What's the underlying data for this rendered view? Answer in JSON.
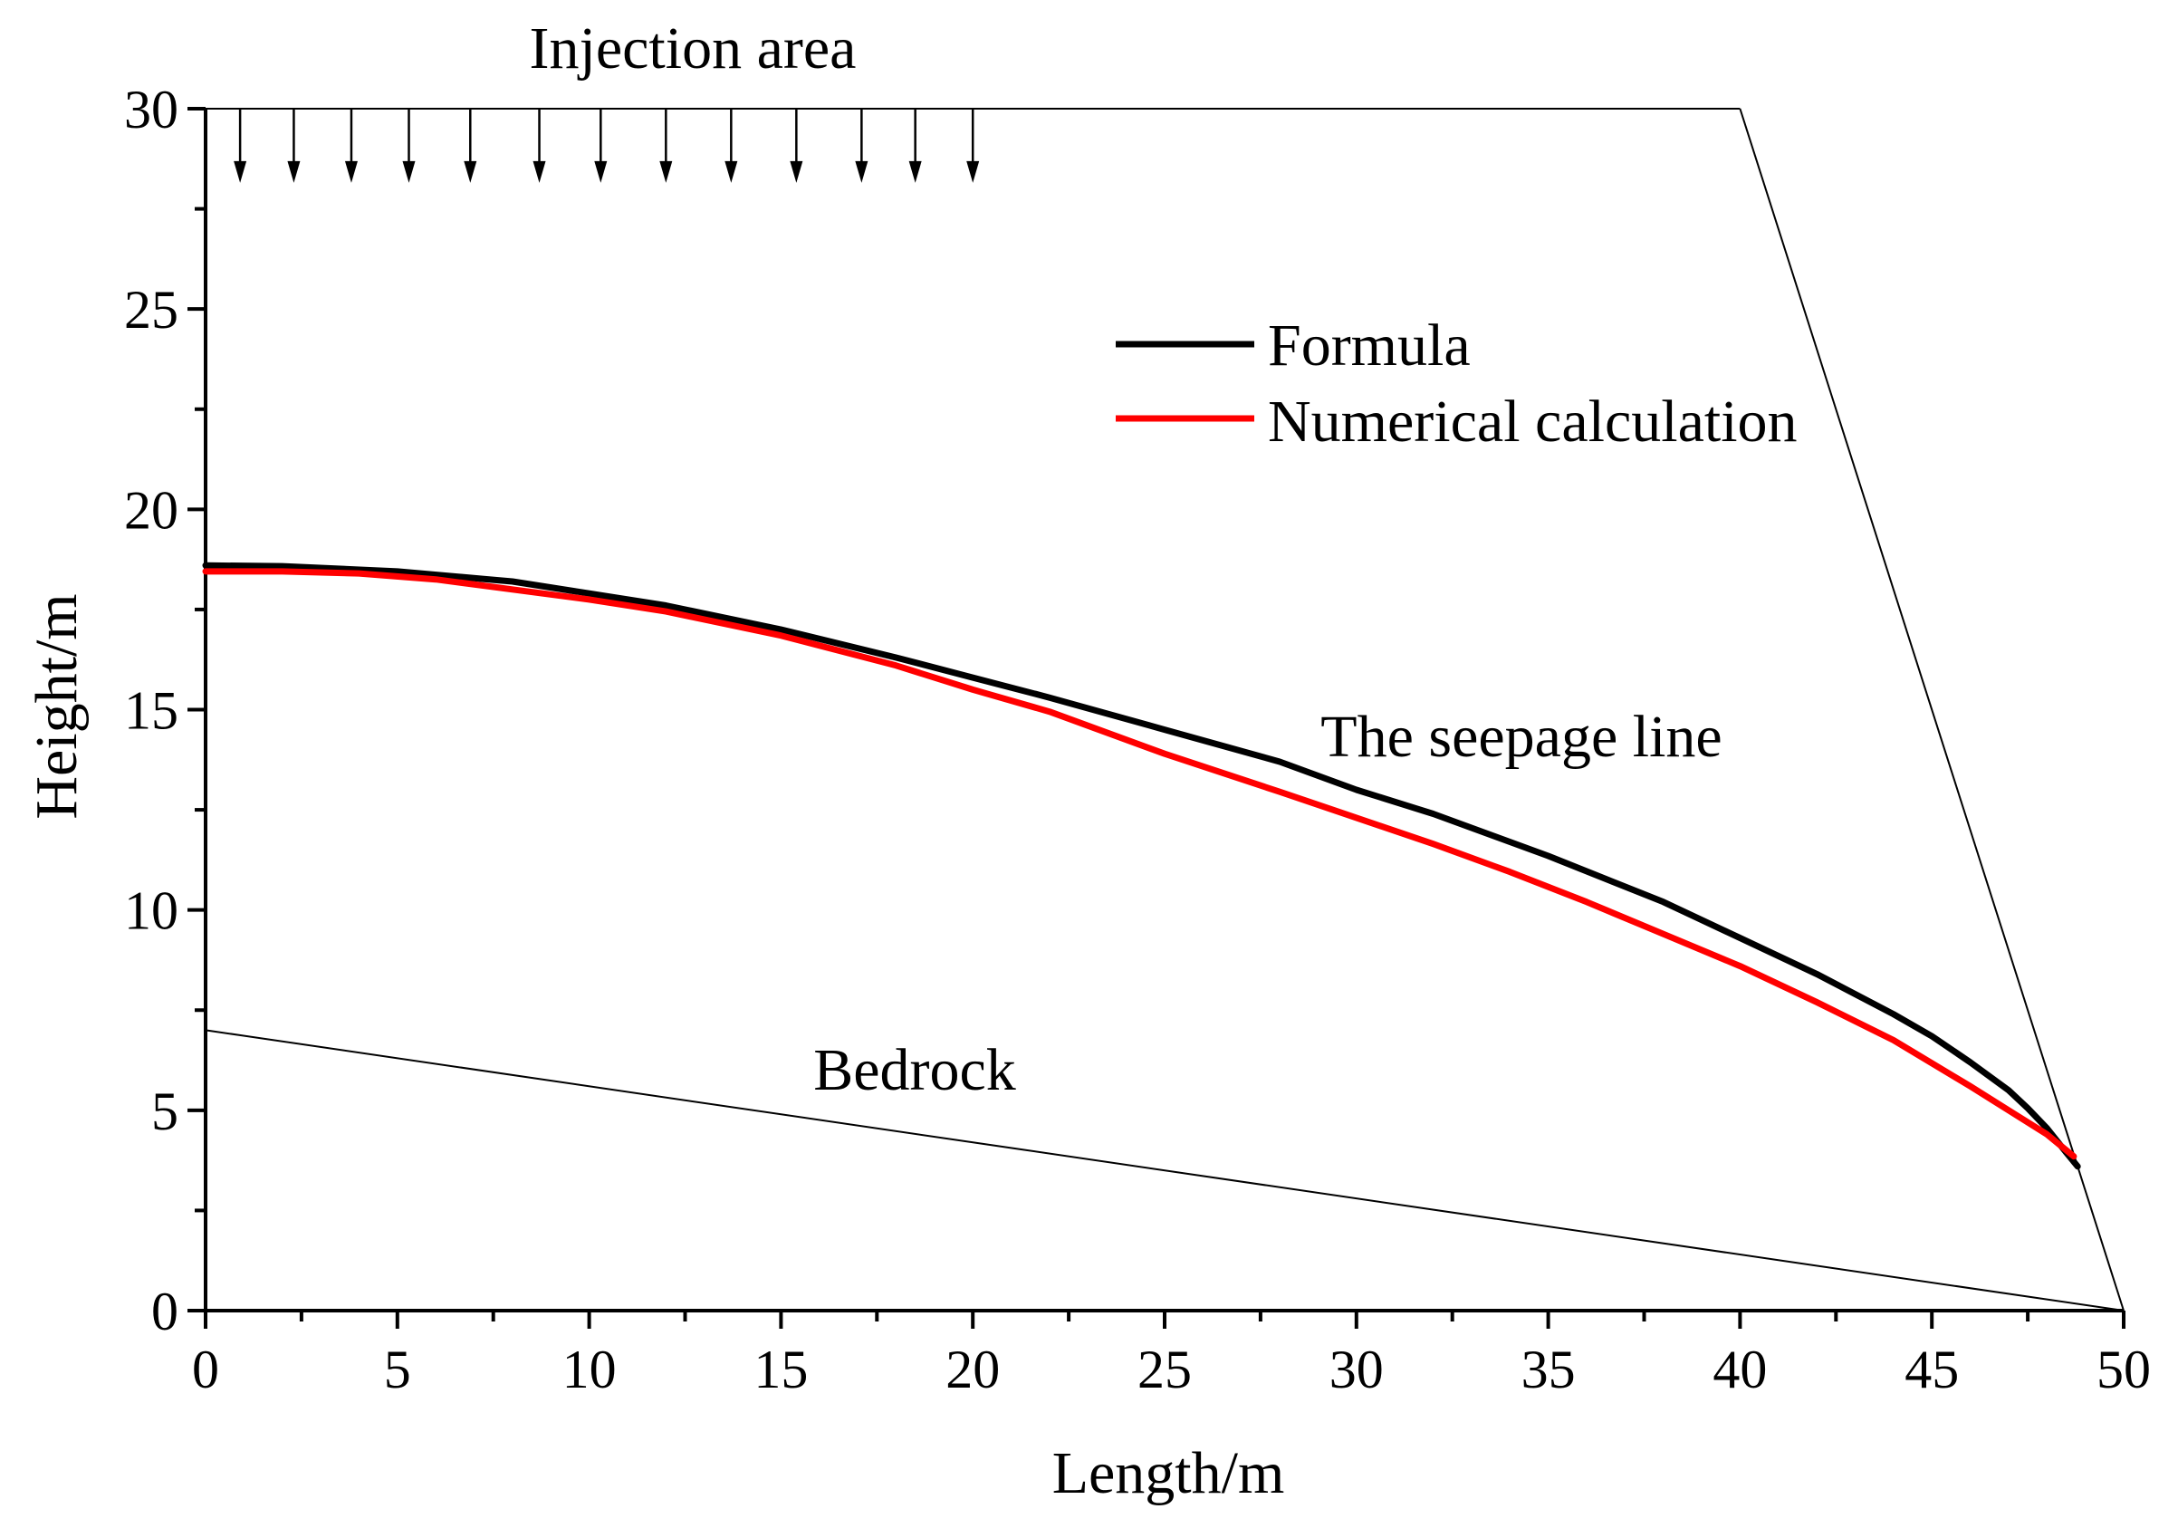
{
  "chart_data": {
    "type": "line",
    "xlabel": "Length/m",
    "ylabel": "Height/m",
    "xlim": [
      0,
      50
    ],
    "ylim": [
      0,
      30
    ],
    "x_ticks": [
      0,
      5,
      10,
      15,
      20,
      25,
      30,
      35,
      40,
      45,
      50
    ],
    "y_ticks": [
      0,
      5,
      10,
      15,
      20,
      25,
      30
    ],
    "x_tick_labels": [
      "0",
      "5",
      "10",
      "15",
      "20",
      "25",
      "30",
      "35",
      "40",
      "45",
      "50"
    ],
    "y_tick_labels": [
      "0",
      "5",
      "10",
      "15",
      "20",
      "25",
      "30"
    ],
    "grid": false,
    "legend_position": "upper-right",
    "series": [
      {
        "name": "Formula",
        "color": "#000000",
        "x": [
          0,
          2,
          5,
          8,
          10,
          12,
          15,
          18,
          20,
          22,
          25,
          28,
          30,
          32,
          35,
          38,
          40,
          42,
          44,
          45,
          46,
          47,
          47.5,
          48,
          48.5,
          48.8
        ],
        "y": [
          18.6,
          18.58,
          18.45,
          18.2,
          17.9,
          17.6,
          17.0,
          16.3,
          15.8,
          15.3,
          14.5,
          13.7,
          13.0,
          12.4,
          11.35,
          10.2,
          9.3,
          8.4,
          7.4,
          6.85,
          6.2,
          5.5,
          5.05,
          4.55,
          3.95,
          3.6
        ]
      },
      {
        "name": "Numerical calculation",
        "color": "#ff0000",
        "x": [
          0,
          2,
          4,
          6,
          8,
          10,
          12,
          15,
          18,
          20,
          22,
          25,
          28,
          30,
          32,
          34,
          36,
          38,
          40,
          42,
          44,
          46,
          47,
          48,
          48.7
        ],
        "y": [
          18.45,
          18.45,
          18.4,
          18.25,
          18.0,
          17.75,
          17.45,
          16.85,
          16.1,
          15.5,
          14.95,
          13.9,
          12.95,
          12.3,
          11.65,
          10.95,
          10.2,
          9.4,
          8.6,
          7.7,
          6.75,
          5.6,
          5.0,
          4.4,
          3.85
        ]
      }
    ],
    "reference_lines": [
      {
        "name": "Bedrock",
        "x": [
          0,
          50
        ],
        "y": [
          7,
          0
        ]
      },
      {
        "name": "Slope",
        "x": [
          40,
          50
        ],
        "y": [
          30,
          0
        ]
      },
      {
        "name": "Top",
        "x": [
          0,
          40
        ],
        "y": [
          30,
          30
        ]
      }
    ],
    "injection_arrows_x": [
      0.9,
      2.3,
      3.8,
      5.3,
      6.9,
      8.7,
      10.3,
      12.0,
      13.7,
      15.4,
      17.1,
      18.5,
      20.0
    ],
    "annotations": {
      "injection_area": "Injection area",
      "seepage_line": "The seepage line",
      "bedrock": "Bedrock"
    }
  }
}
